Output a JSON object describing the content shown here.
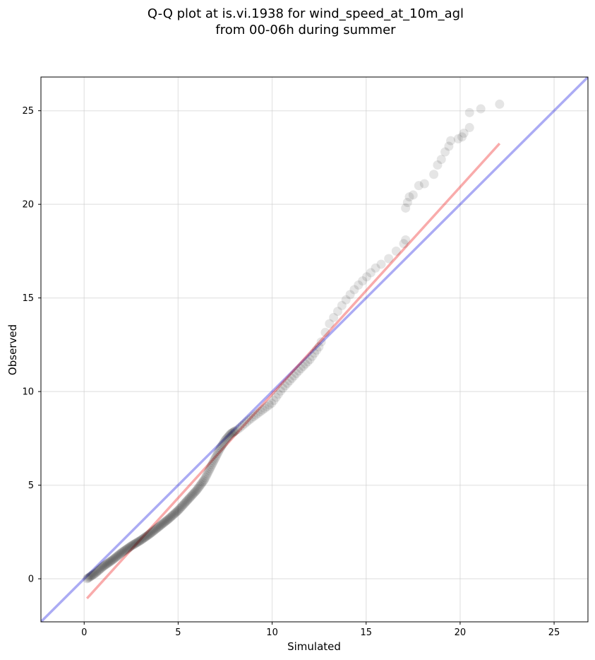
{
  "chart_data": {
    "type": "scatter",
    "title_line1": "Q-Q plot at is.vi.1938 for wind_speed_at_10m_agl",
    "title_line2": "from 00-06h during summer",
    "xlabel": "Simulated",
    "ylabel": "Observed",
    "xlim": [
      -2.3,
      26.8
    ],
    "ylim": [
      -2.3,
      26.8
    ],
    "xticks": [
      0,
      5,
      10,
      15,
      20,
      25
    ],
    "yticks": [
      0,
      5,
      10,
      15,
      20,
      25
    ],
    "grid": true,
    "colors": {
      "points": "#000000",
      "identity_line": "#0000dd",
      "fit_line": "#ee0000"
    },
    "identity_line": {
      "slope": 1,
      "intercept": 0
    },
    "fit_line": {
      "x_start": 0.15,
      "y_start": -1.05,
      "x_end": 22.1,
      "y_end": 23.25
    },
    "quantile_anchors": [
      [
        0.0,
        0.0
      ],
      [
        0.15,
        0.0
      ],
      [
        0.6,
        0.3
      ],
      [
        1.0,
        0.65
      ],
      [
        1.5,
        1.0
      ],
      [
        2.0,
        1.4
      ],
      [
        2.5,
        1.75
      ],
      [
        3.0,
        2.05
      ],
      [
        3.5,
        2.4
      ],
      [
        4.0,
        2.8
      ],
      [
        4.5,
        3.2
      ],
      [
        5.0,
        3.65
      ],
      [
        5.5,
        4.2
      ],
      [
        6.0,
        4.75
      ],
      [
        6.4,
        5.3
      ],
      [
        6.8,
        6.1
      ],
      [
        7.2,
        6.9
      ],
      [
        7.5,
        7.4
      ],
      [
        7.8,
        7.75
      ],
      [
        8.2,
        8.0
      ],
      [
        8.8,
        8.5
      ],
      [
        9.4,
        8.95
      ],
      [
        10.0,
        9.4
      ],
      [
        10.5,
        10.1
      ],
      [
        11.0,
        10.65
      ],
      [
        11.5,
        11.2
      ],
      [
        12.0,
        11.7
      ],
      [
        12.5,
        12.4
      ],
      [
        13.0,
        13.55
      ],
      [
        13.5,
        14.3
      ],
      [
        14.0,
        15.0
      ],
      [
        14.5,
        15.6
      ],
      [
        15.0,
        16.1
      ],
      [
        15.5,
        16.6
      ],
      [
        16.0,
        17.0
      ],
      [
        16.5,
        17.4
      ],
      [
        17.0,
        18.0
      ],
      [
        17.2,
        19.9
      ],
      [
        17.6,
        20.6
      ],
      [
        18.0,
        21.1
      ],
      [
        18.6,
        21.8
      ],
      [
        19.0,
        22.4
      ],
      [
        19.5,
        23.2
      ],
      [
        20.0,
        23.6
      ],
      [
        20.5,
        24.2
      ],
      [
        21.0,
        25.0
      ],
      [
        22.0,
        25.35
      ]
    ],
    "tail_points": [
      [
        15.5,
        16.6
      ],
      [
        15.8,
        16.8
      ],
      [
        16.2,
        17.1
      ],
      [
        16.6,
        17.5
      ],
      [
        17.0,
        17.9
      ],
      [
        17.1,
        18.1
      ],
      [
        17.1,
        19.8
      ],
      [
        17.2,
        20.1
      ],
      [
        17.3,
        20.4
      ],
      [
        17.5,
        20.5
      ],
      [
        17.8,
        21.0
      ],
      [
        18.1,
        21.1
      ],
      [
        18.6,
        21.6
      ],
      [
        18.8,
        22.1
      ],
      [
        19.0,
        22.4
      ],
      [
        19.2,
        22.8
      ],
      [
        19.4,
        23.1
      ],
      [
        19.5,
        23.4
      ],
      [
        19.9,
        23.5
      ],
      [
        20.1,
        23.6
      ],
      [
        20.2,
        23.8
      ],
      [
        20.5,
        24.1
      ],
      [
        20.5,
        24.9
      ],
      [
        21.1,
        25.1
      ],
      [
        22.1,
        25.35
      ]
    ]
  }
}
